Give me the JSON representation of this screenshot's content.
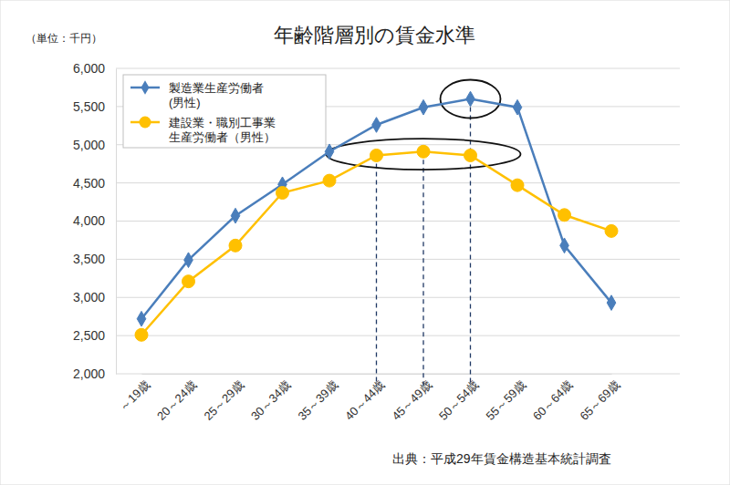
{
  "chart_data": {
    "type": "line",
    "title": "年齢階層別の賃金水準",
    "unit_label": "（単位：千円）",
    "source": "出典：平成29年賃金構造基本統計調査",
    "categories": [
      "～19歳",
      "20～24歳",
      "25～29歳",
      "30～34歳",
      "35～39歳",
      "40～44歳",
      "45～49歳",
      "50～54歳",
      "55～59歳",
      "60～64歳",
      "65～69歳"
    ],
    "series": [
      {
        "name": "製造業生産労働者\n(男性)",
        "color": "#4a7ebb",
        "marker": "diamond",
        "line_style": "solid",
        "values": [
          2720,
          3490,
          4070,
          4480,
          4910,
          5260,
          5490,
          5600,
          5490,
          3680,
          2930
        ]
      },
      {
        "name": "建設業・職別工事業\n生産労働者（男性）",
        "color": "#ffc000",
        "marker": "circle",
        "line_style": "solid",
        "values": [
          2510,
          3210,
          3680,
          4370,
          4530,
          4860,
          4910,
          4860,
          4470,
          4080,
          3870
        ]
      }
    ],
    "ylim": [
      2000,
      6000
    ],
    "yticks": [
      {
        "value": 2000,
        "label": "2,000"
      },
      {
        "value": 2500,
        "label": "2,500"
      },
      {
        "value": 3000,
        "label": "3,000"
      },
      {
        "value": 3500,
        "label": "3,500"
      },
      {
        "value": 4000,
        "label": "4,000"
      },
      {
        "value": 4500,
        "label": "4,500"
      },
      {
        "value": 5000,
        "label": "5,000"
      },
      {
        "value": 5500,
        "label": "5,500"
      },
      {
        "value": 6000,
        "label": "6,000"
      }
    ],
    "grid": true,
    "legend": "upper left"
  }
}
